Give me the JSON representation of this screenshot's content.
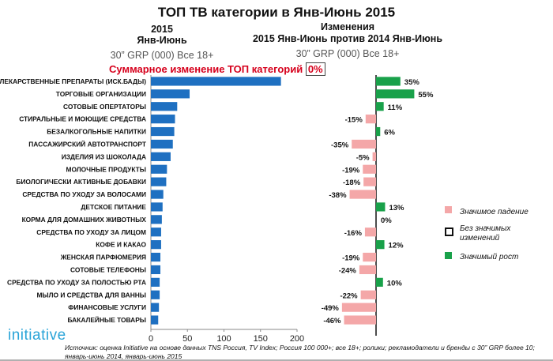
{
  "title": "ТОП ТВ категории в Янв-Июнь 2015",
  "left_header": {
    "year": "2015",
    "period": "Янв-Июнь",
    "metric": "30” GRP (000) Все 18+"
  },
  "right_header": {
    "line1": "Изменения",
    "line2": "2015 Янв-Июнь против 2014 Янв-Июнь",
    "metric": "30” GRP (000) Все 18+"
  },
  "summary": {
    "label": "Суммарное изменение ТОП категорий",
    "value": "0%"
  },
  "legend": {
    "decline": "Значимое падение",
    "no_change": "Без значимых изменений",
    "growth": "Значимый рост"
  },
  "colors": {
    "bar": "#1f70c1",
    "decline": "#f4a7a8",
    "growth": "#19a14a",
    "summary_red": "#d6001c",
    "logo": "#2aa4d8"
  },
  "logo": "initiative",
  "source": "Источник: оценка Initiative на основе данных TNS Россия, TV Index; Россия 100 000+; все 18+; ролики; рекламодатели и бренды с 30” GRP более 10; январь-июнь 2014, январь-июнь 2015",
  "chart_data": [
    {
      "type": "bar",
      "orientation": "horizontal",
      "categories": [
        "ЛЕКАРСТВЕННЫЕ ПРЕПАРАТЫ (ИСК.БАДЫ)",
        "ТОРГОВЫЕ ОРГАНИЗАЦИИ",
        "СОТОВЫЕ ОПЕРТАТОРЫ",
        "СТИРАЛЬНЫЕ И МОЮЩИЕ СРЕДСТВА",
        "БЕЗАЛКОГОЛЬНЫЕ НАПИТКИ",
        "ПАССАЖИРСКИЙ АВТОТРАНСПОРТ",
        "ИЗДЕЛИЯ ИЗ ШОКОЛАДА",
        "МОЛОЧНЫЕ ПРОДУКТЫ",
        "БИОЛОГИЧЕСКИ АКТИВНЫЕ ДОБАВКИ",
        "СРЕДСТВА ПО УХОДУ ЗА ВОЛОСАМИ",
        "ДЕТСКОЕ ПИТАНИЕ",
        "КОРМА ДЛЯ ДОМАШНИХ ЖИВОТНЫХ",
        "СРЕДСТВА ПО УХОДУ ЗА ЛИЦОМ",
        "КОФЕ И КАКАО",
        "ЖЕНСКАЯ ПАРФЮМЕРИЯ",
        "СОТОВЫЕ ТЕЛЕФОНЫ",
        "СРЕДСТВА ПО УХОДУ ЗА ПОЛОСТЬЮ РТА",
        "МЫЛО И СРЕДСТВА ДЛЯ ВАННЫ",
        "ФИНАНСОВЫЕ УСЛУГИ",
        "БАКАЛЕЙНЫЕ ТОВАРЫ"
      ],
      "values": [
        178,
        53,
        36,
        33,
        32,
        30,
        27,
        22,
        21,
        17,
        16,
        15,
        14,
        14,
        13,
        13,
        12,
        12,
        11,
        10
      ],
      "xlim": [
        0,
        200
      ],
      "xticks": [
        "0",
        "50",
        "100",
        "150",
        "200"
      ]
    },
    {
      "type": "bar",
      "orientation": "horizontal",
      "values": [
        35,
        55,
        11,
        -15,
        6,
        -35,
        -5,
        -19,
        -18,
        -38,
        13,
        0,
        -16,
        12,
        -19,
        -24,
        10,
        -22,
        -49,
        -46
      ],
      "labels": [
        "35%",
        "55%",
        "11%",
        "-15%",
        "6%",
        "-35%",
        "-5%",
        "-19%",
        "-18%",
        "-38%",
        "13%",
        "0%",
        "-16%",
        "12%",
        "-19%",
        "-24%",
        "10%",
        "-22%",
        "-49%",
        "-46%"
      ]
    }
  ]
}
